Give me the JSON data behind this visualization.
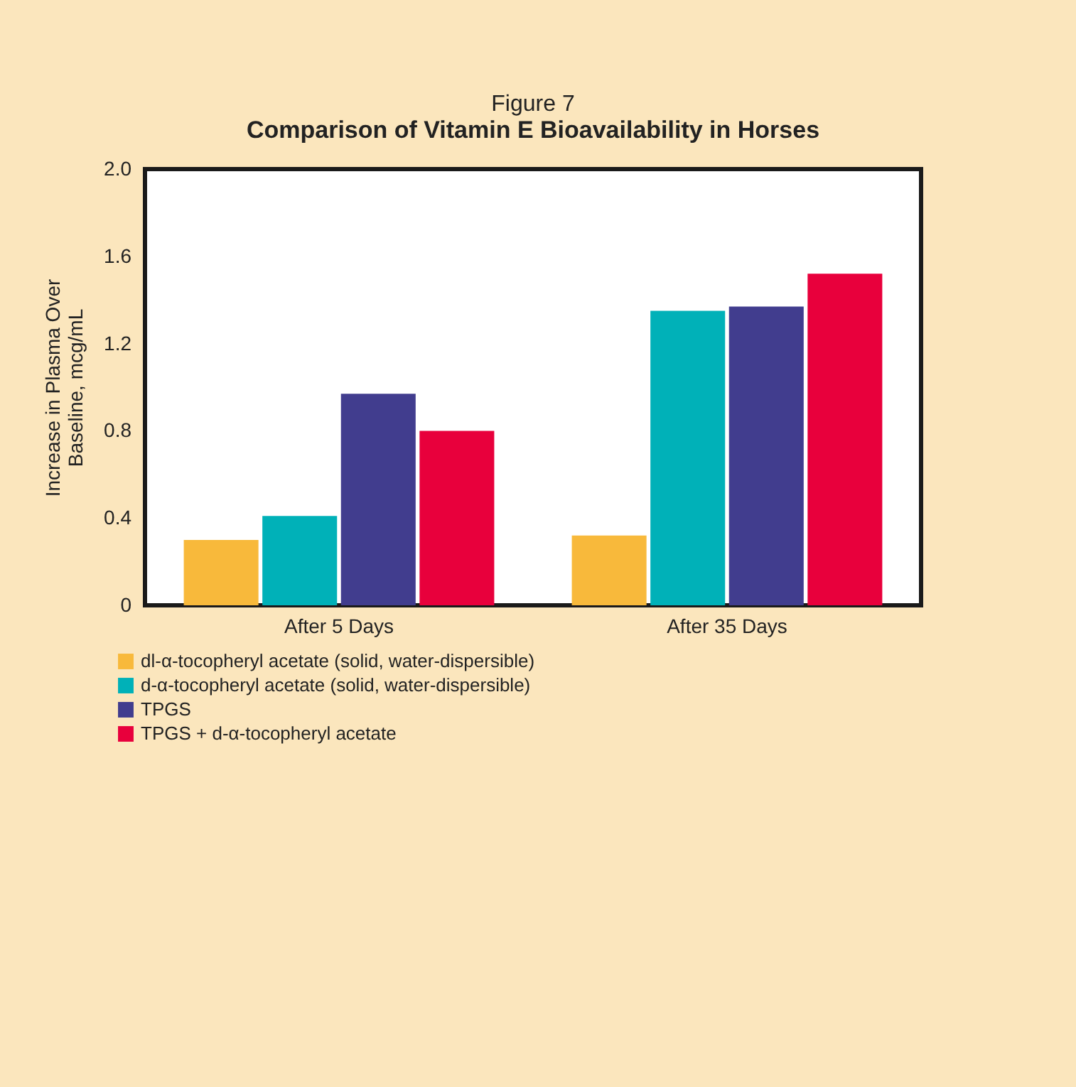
{
  "chart_data": {
    "type": "bar",
    "title": "Figure 7",
    "subtitle": "Comparison of Vitamin E Bioavailability in Horses",
    "ylabel": "Increase in Plasma Over\nBaseline, mcg/mL",
    "categories": [
      "After 5 Days",
      "After 35 Days"
    ],
    "series": [
      {
        "name": "dl-α-tocopheryl acetate (solid, water-dispersible)",
        "color": "#f8b93b",
        "values": [
          0.3,
          0.32
        ]
      },
      {
        "name": "d-α-tocopheryl acetate (solid, water-dispersible)",
        "color": "#00b1b8",
        "values": [
          0.41,
          1.35
        ]
      },
      {
        "name": "TPGS",
        "color": "#413d8e",
        "values": [
          0.97,
          1.37
        ]
      },
      {
        "name": "TPGS + d-α-tocopheryl acetate",
        "color": "#e8003c",
        "values": [
          0.8,
          1.52
        ]
      }
    ],
    "ylim": [
      0,
      2
    ],
    "yticks": [
      0,
      0.4,
      0.8,
      1.2,
      1.6,
      {
        "value": 2,
        "label": "2.0"
      }
    ],
    "grid": false,
    "legend": "bottom left"
  }
}
